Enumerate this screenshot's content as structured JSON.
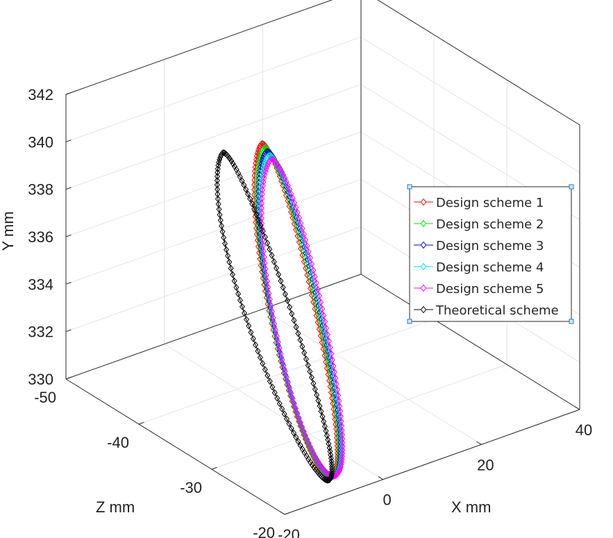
{
  "chart_data": {
    "type": "line3d",
    "title": "",
    "xlabel": "X mm",
    "ylabel": "Y mm",
    "zlabel": "Z mm",
    "xlim": [
      -20,
      40
    ],
    "ylim": [
      330,
      342
    ],
    "zlim": [
      -50,
      -20
    ],
    "x_ticks": [
      -20,
      0,
      20,
      40
    ],
    "y_ticks": [
      330,
      332,
      334,
      336,
      338,
      340,
      342
    ],
    "z_ticks": [
      -50,
      -40,
      -30,
      -20
    ],
    "grid": true,
    "box": true,
    "legend_position": "right",
    "marker": "diamond",
    "series": [
      {
        "name": "Design scheme 1",
        "color": "#ff0000",
        "bottom": {
          "x": -7.3,
          "y": 330.2,
          "z": -22.3
        },
        "tip": {
          "x": 0,
          "y": 341.0,
          "z": -36.6
        },
        "width": 4.0,
        "tail": 1.2,
        "tip_rounding": 1.2
      },
      {
        "name": "Design scheme 2",
        "color": "#00dd00",
        "bottom": {
          "x": -7.1,
          "y": 330.2,
          "z": -22.3
        },
        "tip": {
          "x": 0.5,
          "y": 340.8,
          "z": -36.6
        },
        "width": 4.1,
        "tail": 1.25,
        "tip_rounding": 1.2
      },
      {
        "name": "Design scheme 3",
        "color": "#0000bb",
        "bottom": {
          "x": -6.9,
          "y": 330.2,
          "z": -22.3
        },
        "tip": {
          "x": 1.0,
          "y": 340.6,
          "z": -36.6
        },
        "width": 4.2,
        "tail": 1.3,
        "tip_rounding": 1.2
      },
      {
        "name": "Design scheme 4",
        "color": "#00dddd",
        "bottom": {
          "x": -6.8,
          "y": 330.2,
          "z": -22.3
        },
        "tip": {
          "x": 1.4,
          "y": 340.4,
          "z": -36.6
        },
        "width": 4.3,
        "tail": 1.35,
        "tip_rounding": 1.2
      },
      {
        "name": "Design scheme 5",
        "color": "#ff00ff",
        "bottom": {
          "x": -6.7,
          "y": 330.2,
          "z": -22.3
        },
        "tip": {
          "x": 1.9,
          "y": 340.2,
          "z": -36.6
        },
        "width": 4.4,
        "tail": 1.4,
        "tip_rounding": 1.2
      },
      {
        "name": "Theoretical scheme",
        "color": "#000000",
        "bottom": {
          "x": -7.7,
          "y": 330.1,
          "z": -22.3
        },
        "tip": {
          "x": -7.9,
          "y": 341.2,
          "z": -36.6
        },
        "width": 4.4,
        "tail": 0.5,
        "tip_rounding": 1.0
      }
    ]
  }
}
